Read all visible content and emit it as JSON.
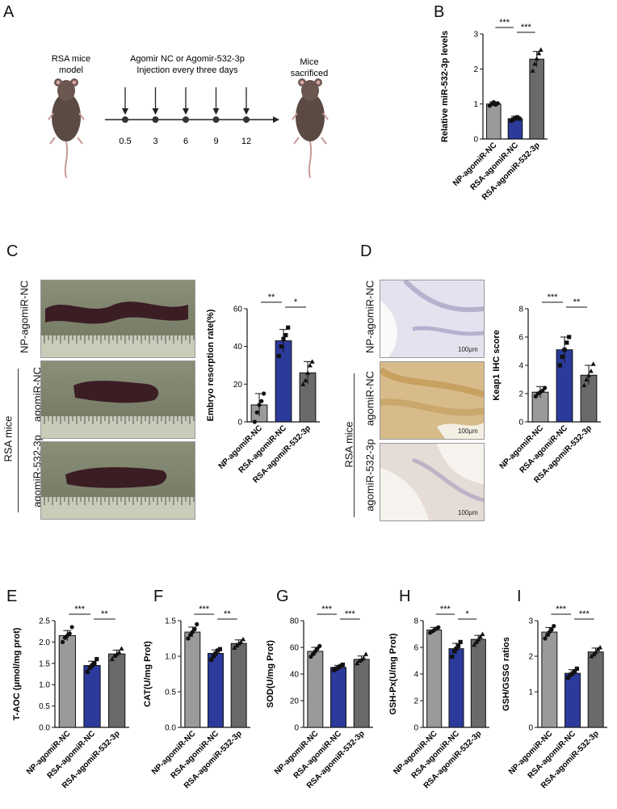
{
  "panels": {
    "A": "A",
    "B": "B",
    "C": "C",
    "D": "D",
    "E": "E",
    "F": "F",
    "G": "G",
    "H": "H",
    "I": "I"
  },
  "timeline": {
    "left_label_1": "RSA mice",
    "left_label_2": "model",
    "center_label_1": "Agomir NC or Agomir-532-3p",
    "center_label_2": "Injection every three days",
    "right_label_1": "Mice",
    "right_label_2": "sacrificed",
    "days": [
      "0.5",
      "3",
      "6",
      "9",
      "12"
    ]
  },
  "photos_c": {
    "row1": "NP-agomiR-NC",
    "row2": "agomiR-NC",
    "row3": "agomiR-532-3p",
    "group": "RSA mice"
  },
  "photos_d": {
    "row1": "NP-agomiR-NC",
    "row2": "agomiR-NC",
    "row3": "agomiR-532-3p",
    "group": "RSA mice",
    "scale": "100μm"
  },
  "colors": {
    "np": "#9a9a9a",
    "rsa": "#2b3a9b",
    "agomir": "#6a6a6a"
  },
  "chart_data": [
    {
      "id": "B",
      "type": "bar",
      "categories": [
        "NP-agomiR-NC",
        "RSA-agomiR-NC",
        "RSA-agomiR-532-3p"
      ],
      "values": [
        1.0,
        0.58,
        2.28
      ],
      "errors": [
        0.06,
        0.07,
        0.22
      ],
      "points": [
        [
          0.95,
          1.0,
          1.05,
          0.98,
          1.02
        ],
        [
          0.52,
          0.56,
          0.6,
          0.62,
          0.58
        ],
        [
          1.95,
          2.15,
          2.3,
          2.45,
          2.55
        ]
      ],
      "ylabel": "Relative miR-532-3p levels",
      "ylim": [
        0,
        3
      ],
      "yticks": [
        "0",
        "1",
        "2",
        "3"
      ],
      "significance": [
        {
          "from": 0,
          "to": 1,
          "label": "***"
        },
        {
          "from": 1,
          "to": 2,
          "label": "***"
        }
      ]
    },
    {
      "id": "C",
      "type": "bar",
      "categories": [
        "NP-agomiR-NC",
        "RSA-agomiR-NC",
        "RSA-agomiR-532-3p"
      ],
      "values": [
        9,
        43,
        26
      ],
      "errors": [
        6,
        6,
        6
      ],
      "points": [
        [
          0,
          5,
          9,
          11,
          15
        ],
        [
          35,
          40,
          44,
          46,
          50
        ],
        [
          20,
          22,
          26,
          30,
          32
        ]
      ],
      "ylabel": "Embryo resorption rate(%)",
      "ylim": [
        0,
        60
      ],
      "yticks": [
        "0",
        "20",
        "40",
        "60"
      ],
      "significance": [
        {
          "from": 0,
          "to": 1,
          "label": "**"
        },
        {
          "from": 1,
          "to": 2,
          "label": "*"
        }
      ]
    },
    {
      "id": "D",
      "type": "bar",
      "categories": [
        "NP-agomiR-NC",
        "RSA-agomiR-NC",
        "RSA-agomiR-532-3p"
      ],
      "values": [
        2.1,
        5.1,
        3.3
      ],
      "errors": [
        0.4,
        0.9,
        0.7
      ],
      "points": [
        [
          1.8,
          2.0,
          2.1,
          2.2,
          2.4
        ],
        [
          4.0,
          4.6,
          5.1,
          5.6,
          6.0
        ],
        [
          2.6,
          3.0,
          3.3,
          3.6,
          4.1
        ]
      ],
      "ylabel": "Keap1 IHC score",
      "ylim": [
        0,
        8
      ],
      "yticks": [
        "0",
        "2",
        "4",
        "6",
        "8"
      ],
      "significance": [
        {
          "from": 0,
          "to": 1,
          "label": "***"
        },
        {
          "from": 1,
          "to": 2,
          "label": "**"
        }
      ]
    },
    {
      "id": "E",
      "type": "bar",
      "categories": [
        "NP-agomiR-NC",
        "RSA-agomiR-NC",
        "RSA-agomiR-532-3p"
      ],
      "values": [
        2.15,
        1.45,
        1.72
      ],
      "errors": [
        0.12,
        0.1,
        0.09
      ],
      "points": [
        [
          2.0,
          2.1,
          2.15,
          2.2,
          2.35
        ],
        [
          1.3,
          1.4,
          1.45,
          1.5,
          1.6
        ],
        [
          1.6,
          1.68,
          1.72,
          1.76,
          1.85
        ]
      ],
      "ylabel": "T-AOC (μmol/mg prot)",
      "ylim": [
        0,
        2.5
      ],
      "yticks": [
        "0.0",
        "0.5",
        "1.0",
        "1.5",
        "2.0",
        "2.5"
      ],
      "significance": [
        {
          "from": 0,
          "to": 1,
          "label": "***"
        },
        {
          "from": 1,
          "to": 2,
          "label": "**"
        }
      ]
    },
    {
      "id": "F",
      "type": "bar",
      "categories": [
        "NP-agomiR-NC",
        "RSA-agomiR-NC",
        "RSA-agomiR-532-3p"
      ],
      "values": [
        1.34,
        1.04,
        1.18
      ],
      "errors": [
        0.07,
        0.05,
        0.05
      ],
      "points": [
        [
          1.25,
          1.3,
          1.34,
          1.38,
          1.45
        ],
        [
          0.95,
          1.0,
          1.04,
          1.08,
          1.1
        ],
        [
          1.12,
          1.15,
          1.18,
          1.2,
          1.24
        ]
      ],
      "ylabel": "CAT(U/mg Prot)",
      "ylim": [
        0,
        1.5
      ],
      "yticks": [
        "0.0",
        "0.5",
        "1.0",
        "1.5"
      ],
      "significance": [
        {
          "from": 0,
          "to": 1,
          "label": "***"
        },
        {
          "from": 1,
          "to": 2,
          "label": "**"
        }
      ]
    },
    {
      "id": "G",
      "type": "bar",
      "categories": [
        "NP-agomiR-NC",
        "RSA-agomiR-NC",
        "RSA-agomiR-532-3p"
      ],
      "values": [
        57,
        45,
        51
      ],
      "errors": [
        3,
        1.5,
        2.5
      ],
      "points": [
        [
          53,
          55,
          57,
          59,
          61
        ],
        [
          43,
          44,
          45,
          46,
          47
        ],
        [
          48,
          50,
          51,
          52,
          55
        ]
      ],
      "ylabel": "SOD(U/mg Prot)",
      "ylim": [
        0,
        80
      ],
      "yticks": [
        "0",
        "20",
        "40",
        "60",
        "80"
      ],
      "significance": [
        {
          "from": 0,
          "to": 1,
          "label": "***"
        },
        {
          "from": 1,
          "to": 2,
          "label": "***"
        }
      ]
    },
    {
      "id": "H",
      "type": "bar",
      "categories": [
        "NP-agomiR-NC",
        "RSA-agomiR-NC",
        "RSA-agomiR-532-3p"
      ],
      "values": [
        7.3,
        5.9,
        6.6
      ],
      "errors": [
        0.2,
        0.4,
        0.3
      ],
      "points": [
        [
          7.1,
          7.2,
          7.3,
          7.4,
          7.5
        ],
        [
          5.3,
          5.7,
          5.9,
          6.1,
          6.4
        ],
        [
          6.2,
          6.4,
          6.6,
          6.8,
          7.0
        ]
      ],
      "ylabel": "GSH-Px(U/mg Prot)",
      "ylim": [
        0,
        8
      ],
      "yticks": [
        "0",
        "2",
        "4",
        "6",
        "8"
      ],
      "significance": [
        {
          "from": 0,
          "to": 1,
          "label": "***"
        },
        {
          "from": 1,
          "to": 2,
          "label": "*"
        }
      ]
    },
    {
      "id": "I",
      "type": "bar",
      "categories": [
        "NP-agomiR-NC",
        "RSA-agomiR-NC",
        "RSA-agomiR-532-3p"
      ],
      "values": [
        2.68,
        1.52,
        2.12
      ],
      "errors": [
        0.13,
        0.1,
        0.11
      ],
      "points": [
        [
          2.5,
          2.6,
          2.68,
          2.75,
          2.85
        ],
        [
          1.4,
          1.48,
          1.52,
          1.58,
          1.65
        ],
        [
          2.0,
          2.05,
          2.12,
          2.2,
          2.25
        ]
      ],
      "ylabel": "GSH/GSSG ratios",
      "ylim": [
        0,
        3
      ],
      "yticks": [
        "0",
        "1",
        "2",
        "3"
      ],
      "significance": [
        {
          "from": 0,
          "to": 1,
          "label": "***"
        },
        {
          "from": 1,
          "to": 2,
          "label": "***"
        }
      ]
    }
  ]
}
